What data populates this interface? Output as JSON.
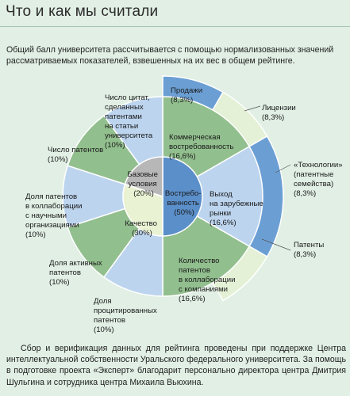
{
  "header": {
    "title": "Что и как мы считали",
    "intro": "Общий балл университета рассчитывается с помощью нормализованных значений рассматриваемых показателей, взвешенных на их вес в общем рейтинге."
  },
  "footer": {
    "text": "Сбор и верификация данных для рейтинга проведены при поддержке Центра интеллектуальной собственности Уральского федерального университета. За помощь в подготовке проекта «Эксперт» благодарит персонально директора центра Дмитрия Шульгина и сотрудника центра Михаила Вьюхина."
  },
  "colors": {
    "light_blue": "#bcd4ee",
    "green": "#92bf8e",
    "inner_blue": "#5b8fc9",
    "inner_gray": "#b7b7b7",
    "inner_cream": "#e9f2d3",
    "dark_blue": "#6b9fd4",
    "pale_green": "#e4f1d6"
  },
  "chart_data": {
    "type": "pie",
    "title": "",
    "center_groups": [
      {
        "name": "Востребо-ванность",
        "label_lines": [
          "Востребо-",
          "ванность",
          "(50%)"
        ],
        "value": 50
      },
      {
        "name": "Качество",
        "label_lines": [
          "Качество",
          "(30%)"
        ],
        "value": 30
      },
      {
        "name": "Базовые условия",
        "label_lines": [
          "Базовые",
          "условия",
          "(20%)"
        ],
        "value": 20
      }
    ],
    "middle_ring": [
      {
        "group": "Востребо-ванность",
        "label_lines": [
          "Коммерческая",
          "востребованность",
          "(16,6%)"
        ],
        "value": 16.6
      },
      {
        "group": "Востребо-ванность",
        "label_lines": [
          "Выход",
          "на зарубежные",
          "рынки",
          "(16,6%)"
        ],
        "value": 16.6
      },
      {
        "group": "Востребо-ванность",
        "label_lines": [
          "Количество",
          "патентов",
          "в коллаборации",
          "с компаниями",
          "(16,6%)"
        ],
        "value": 16.6
      },
      {
        "group": "Качество",
        "label_lines": [
          "Доля",
          "процитированных",
          "патентов",
          "(10%)"
        ],
        "value": 10
      },
      {
        "group": "Качество",
        "label_lines": [
          "Доля активных",
          "патентов",
          "(10%)"
        ],
        "value": 10
      },
      {
        "group": "Качество",
        "label_lines": [
          "Доля патентов",
          "в коллаборации",
          "с научными",
          "организациями",
          "(10%)"
        ],
        "value": 10
      },
      {
        "group": "Базовые условия",
        "label_lines": [
          "Число патентов",
          "(10%)"
        ],
        "value": 10
      },
      {
        "group": "Базовые условия",
        "label_lines": [
          "Число цитат,",
          "сделанных",
          "патентами",
          "на статьи",
          "университета",
          "(10%)"
        ],
        "value": 10
      }
    ],
    "outer_ring": [
      {
        "parent": "Коммерческая востребованность",
        "label_lines": [
          "Продажи",
          "(8,3%)"
        ],
        "value": 8.3
      },
      {
        "parent": "Коммерческая востребованность",
        "label_lines": [
          "Лицензии",
          "(8,3%)"
        ],
        "value": 8.3
      },
      {
        "parent": "Выход на зарубежные рынки",
        "label_lines": [
          "«Технологии»",
          "(патентные",
          "семейства)",
          "(8,3%)"
        ],
        "value": 8.3
      },
      {
        "parent": "Выход на зарубежные рынки",
        "label_lines": [
          "Патенты",
          "(8,3%)"
        ],
        "value": 8.3
      }
    ]
  }
}
